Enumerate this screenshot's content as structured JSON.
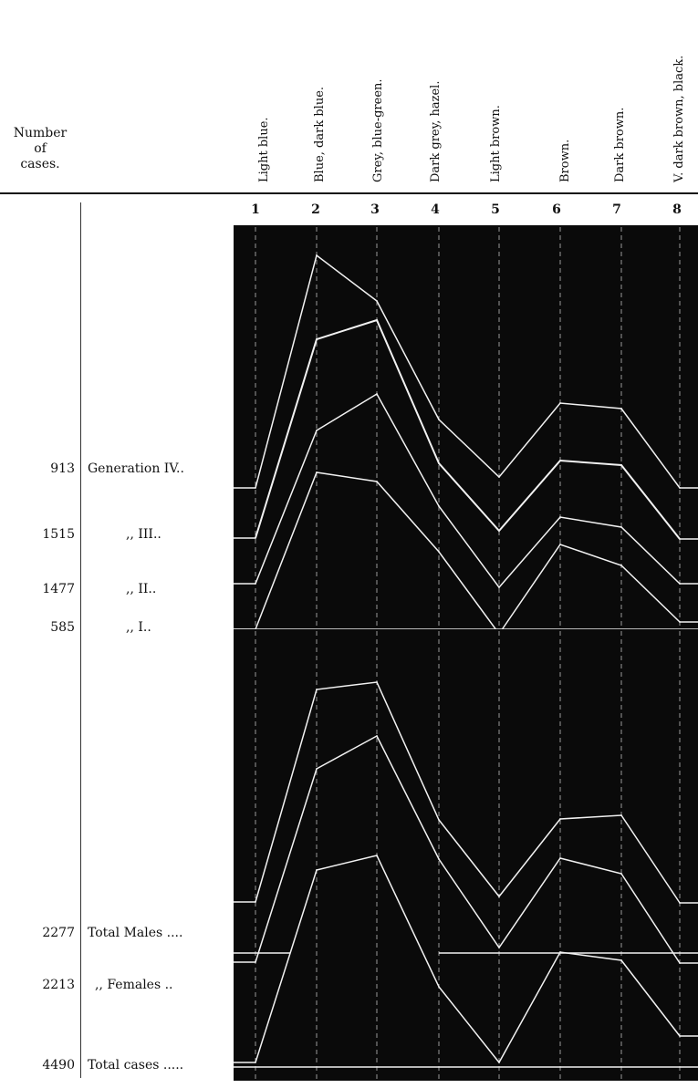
{
  "header": {
    "number_of_cases_lines": [
      "Number",
      "of",
      "cases."
    ]
  },
  "columns": [
    {
      "num": "1",
      "label": "Light blue."
    },
    {
      "num": "2",
      "label": "Blue, dark blue."
    },
    {
      "num": "3",
      "label": "Grey, blue-green."
    },
    {
      "num": "4",
      "label": "Dark grey, hazel."
    },
    {
      "num": "5",
      "label": "Light brown."
    },
    {
      "num": "6",
      "label": "Brown."
    },
    {
      "num": "7",
      "label": "Dark brown."
    },
    {
      "num": "8",
      "label": "V. dark brown, black."
    }
  ],
  "rows": [
    {
      "count": "913",
      "label": "Generation IV.."
    },
    {
      "count": "1515",
      "label": ",,          III.."
    },
    {
      "count": "1477",
      "label": ",,          II.."
    },
    {
      "count": "585",
      "label": ",,          I.."
    },
    {
      "count": "2277",
      "label": "Total Males ...."
    },
    {
      "count": "2213",
      "label": ",,   Females .."
    },
    {
      "count": "4490",
      "label": "Total cases ....."
    }
  ],
  "colors": {
    "panel": "#0a0a0a",
    "line": "#f2f2f2",
    "dashed": "#9a9a9a",
    "text": "#111111"
  },
  "chart_data": [
    {
      "type": "line",
      "categories": [
        "1",
        "2",
        "3",
        "4",
        "5",
        "6",
        "7",
        "8"
      ],
      "y_note": "values = height above the panel's baseline, as drawn (chart has no printed y scale)",
      "series": [
        {
          "name": "Generation IV..",
          "values": [
            155,
            410,
            360,
            230,
            167,
            248,
            242,
            155
          ]
        },
        {
          "name": ",, III..",
          "values": [
            100,
            318,
            339,
            182,
            108,
            185,
            180,
            99
          ]
        },
        {
          "name": ",, II..",
          "values": [
            50,
            218,
            258,
            135,
            46,
            123,
            112,
            50
          ]
        },
        {
          "name": ",, I..",
          "values": [
            0,
            172,
            162,
            85,
            -5,
            93,
            70,
            8
          ]
        }
      ]
    },
    {
      "type": "line",
      "categories": [
        "1",
        "2",
        "3",
        "4",
        "5",
        "6",
        "7",
        "8"
      ],
      "y_note": "values = height above the panel's baseline, as drawn",
      "series": [
        {
          "name": "Total Males ....",
          "values": [
            181,
            414,
            422,
            271,
            187,
            272,
            276,
            180
          ]
        },
        {
          "name": ",, Females ..",
          "values": [
            115,
            327,
            363,
            228,
            131,
            229,
            212,
            114
          ]
        },
        {
          "name": "Total cases .....",
          "values": [
            5,
            216,
            232,
            88,
            5,
            126,
            117,
            34
          ]
        }
      ]
    }
  ]
}
